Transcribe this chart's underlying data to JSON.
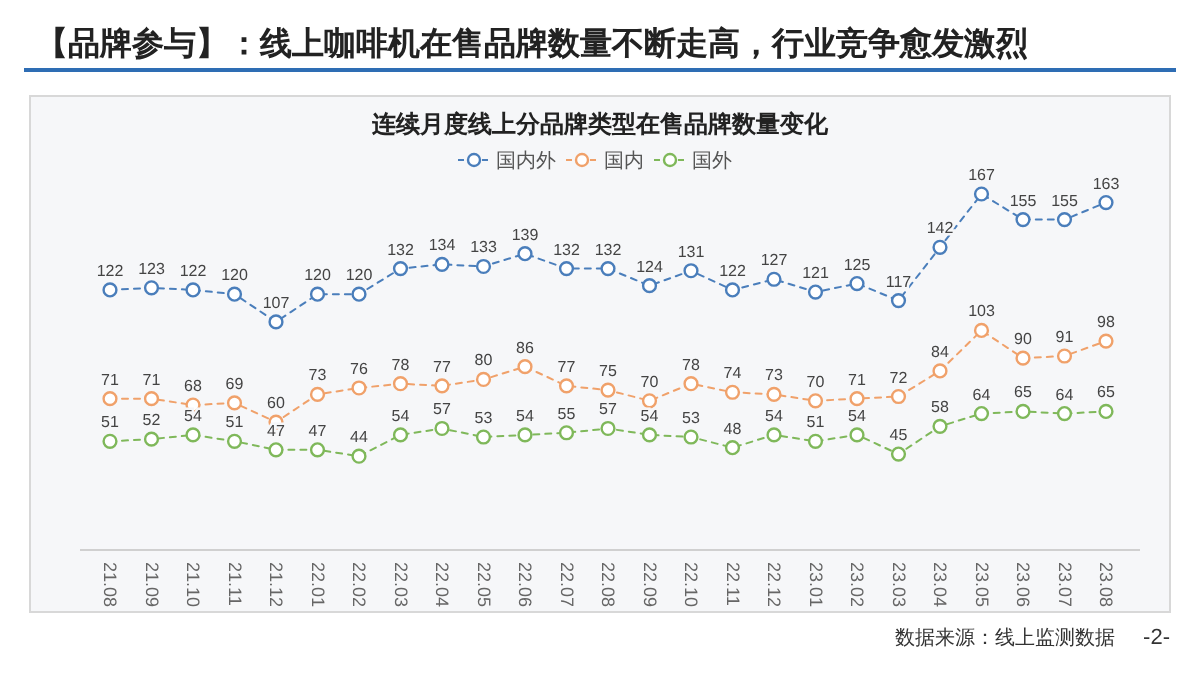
{
  "chart_data": {
    "type": "line",
    "title": "【品牌参与】：线上咖啡机在售品牌数量不断走高，行业竞争愈发激烈",
    "subtitle": "连续月度线上分品牌类型在售品牌数量变化",
    "categories": [
      "21.08",
      "21.09",
      "21.10",
      "21.11",
      "21.12",
      "22.01",
      "22.02",
      "22.03",
      "22.04",
      "22.05",
      "22.06",
      "22.07",
      "22.08",
      "22.09",
      "22.10",
      "22.11",
      "22.12",
      "23.01",
      "23.02",
      "23.03",
      "23.04",
      "23.05",
      "23.06",
      "23.07",
      "23.08"
    ],
    "series": [
      {
        "name": "国内外",
        "color": "#4a7ebb",
        "values": [
          122,
          123,
          122,
          120,
          107,
          120,
          120,
          132,
          134,
          133,
          139,
          132,
          132,
          124,
          131,
          122,
          127,
          121,
          125,
          117,
          142,
          167,
          155,
          155,
          163
        ]
      },
      {
        "name": "国内",
        "color": "#f0a16a",
        "values": [
          71,
          71,
          68,
          69,
          60,
          73,
          76,
          78,
          77,
          80,
          86,
          77,
          75,
          70,
          78,
          74,
          73,
          70,
          71,
          72,
          84,
          103,
          90,
          91,
          98
        ]
      },
      {
        "name": "国外",
        "color": "#7fb85a",
        "values": [
          51,
          52,
          54,
          51,
          47,
          47,
          44,
          54,
          57,
          53,
          54,
          55,
          57,
          54,
          53,
          48,
          54,
          51,
          54,
          45,
          58,
          64,
          65,
          64,
          65
        ]
      }
    ],
    "tick_labels": "x",
    "data_labels": true,
    "legend": "top",
    "marker": "circle",
    "line_style": "dashed",
    "annotations": [
      "数据来源：线上监测数据",
      "-2-"
    ]
  }
}
